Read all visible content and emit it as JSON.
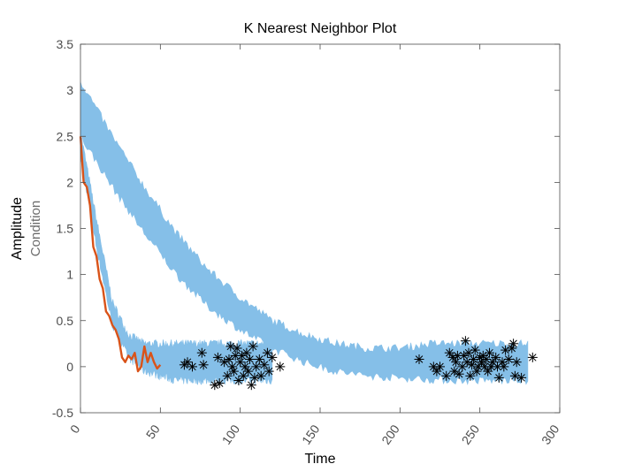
{
  "chart_data": {
    "type": "line",
    "title": "K Nearest Neighbor Plot",
    "xlabel": "Time",
    "ylabel": "Amplitude",
    "ylabel_secondary": "Condition",
    "xlim": [
      0,
      300
    ],
    "ylim": [
      -0.5,
      3.5
    ],
    "xticks": [
      0,
      50,
      100,
      150,
      200,
      250,
      300
    ],
    "yticks": [
      -0.5,
      0,
      0.5,
      1,
      1.5,
      2,
      2.5,
      3,
      3.5
    ],
    "grid": false,
    "colors": {
      "band": "#85bfe8",
      "current": "#d95319",
      "neighbor_end": "#000000",
      "axis": "#4d4d4d"
    },
    "series": [
      {
        "kind": "band",
        "x": [
          0,
          10,
          20,
          30,
          40,
          50,
          60,
          70,
          80,
          90,
          100,
          110,
          120
        ],
        "lower": [
          2.3,
          1.3,
          0.45,
          0.1,
          -0.05,
          -0.1,
          -0.15,
          -0.15,
          -0.15,
          -0.15,
          -0.15,
          -0.15,
          -0.15
        ],
        "upper": [
          2.55,
          1.6,
          0.7,
          0.35,
          0.25,
          0.25,
          0.25,
          0.25,
          0.25,
          0.25,
          0.25,
          0.25,
          0.25
        ]
      },
      {
        "kind": "band",
        "x": [
          0,
          20,
          40,
          60,
          80,
          100,
          120,
          140,
          160,
          180,
          200,
          220,
          240,
          260,
          280
        ],
        "lower": [
          2.5,
          1.95,
          1.45,
          1.0,
          0.65,
          0.4,
          0.2,
          0.05,
          -0.05,
          -0.1,
          -0.12,
          -0.14,
          -0.15,
          -0.15,
          -0.15
        ],
        "upper": [
          3.1,
          2.5,
          1.95,
          1.45,
          1.05,
          0.75,
          0.5,
          0.35,
          0.25,
          0.2,
          0.2,
          0.25,
          0.25,
          0.25,
          0.25
        ]
      },
      {
        "kind": "line",
        "x": [
          0,
          2,
          4,
          6,
          8,
          10,
          12,
          14,
          16,
          18,
          20,
          22,
          24,
          26,
          28,
          30,
          32,
          34,
          36,
          38,
          40,
          42,
          44,
          46,
          48,
          50
        ],
        "y": [
          2.5,
          2.0,
          1.95,
          1.75,
          1.3,
          1.2,
          0.95,
          0.85,
          0.6,
          0.55,
          0.45,
          0.4,
          0.3,
          0.1,
          0.05,
          0.12,
          0.08,
          0.15,
          -0.05,
          0.0,
          0.22,
          0.05,
          0.15,
          0.05,
          -0.02,
          0.02
        ]
      }
    ],
    "markers": {
      "symbol": "*",
      "points": [
        [
          65,
          0.02
        ],
        [
          67,
          0.05
        ],
        [
          70,
          0.0
        ],
        [
          76,
          0.15
        ],
        [
          77,
          0.02
        ],
        [
          84,
          -0.2
        ],
        [
          86,
          0.1
        ],
        [
          87,
          -0.18
        ],
        [
          90,
          0.05
        ],
        [
          92,
          -0.1
        ],
        [
          93,
          0.08
        ],
        [
          94,
          0.22
        ],
        [
          95,
          0.0
        ],
        [
          96,
          -0.05
        ],
        [
          97,
          0.12
        ],
        [
          98,
          0.2
        ],
        [
          99,
          -0.15
        ],
        [
          100,
          0.05
        ],
        [
          101,
          0.12
        ],
        [
          102,
          -0.1
        ],
        [
          103,
          0.0
        ],
        [
          104,
          0.15
        ],
        [
          105,
          -0.05
        ],
        [
          106,
          0.08
        ],
        [
          107,
          -0.2
        ],
        [
          108,
          0.22
        ],
        [
          109,
          -0.12
        ],
        [
          110,
          0.0
        ],
        [
          112,
          0.08
        ],
        [
          113,
          -0.1
        ],
        [
          115,
          0.02
        ],
        [
          117,
          0.15
        ],
        [
          118,
          -0.05
        ],
        [
          120,
          0.1
        ],
        [
          125,
          0.0
        ],
        [
          212,
          0.08
        ],
        [
          221,
          0.0
        ],
        [
          223,
          -0.05
        ],
        [
          225,
          0.0
        ],
        [
          229,
          -0.1
        ],
        [
          231,
          0.15
        ],
        [
          233,
          0.1
        ],
        [
          234,
          -0.05
        ],
        [
          235,
          0.05
        ],
        [
          236,
          0.12
        ],
        [
          237,
          -0.08
        ],
        [
          239,
          0.0
        ],
        [
          240,
          0.12
        ],
        [
          241,
          0.28
        ],
        [
          242,
          0.05
        ],
        [
          243,
          0.15
        ],
        [
          244,
          -0.1
        ],
        [
          245,
          0.02
        ],
        [
          246,
          0.08
        ],
        [
          247,
          0.18
        ],
        [
          248,
          -0.05
        ],
        [
          249,
          0.0
        ],
        [
          250,
          0.1
        ],
        [
          251,
          0.05
        ],
        [
          252,
          0.12
        ],
        [
          253,
          0.0
        ],
        [
          254,
          0.08
        ],
        [
          255,
          -0.05
        ],
        [
          256,
          0.15
        ],
        [
          257,
          0.0
        ],
        [
          258,
          0.05
        ],
        [
          260,
          0.1
        ],
        [
          261,
          0.0
        ],
        [
          262,
          -0.12
        ],
        [
          264,
          0.05
        ],
        [
          265,
          0.0
        ],
        [
          266,
          0.18
        ],
        [
          268,
          0.08
        ],
        [
          270,
          0.2
        ],
        [
          271,
          0.25
        ],
        [
          272,
          -0.1
        ],
        [
          273,
          0.05
        ],
        [
          276,
          -0.12
        ],
        [
          283,
          0.1
        ]
      ]
    }
  }
}
